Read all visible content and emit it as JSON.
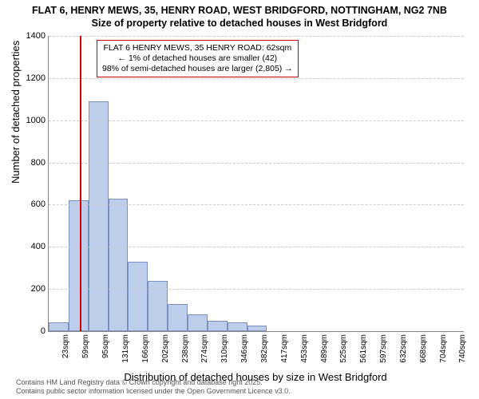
{
  "title": {
    "line1": "FLAT 6, HENRY MEWS, 35, HENRY ROAD, WEST BRIDGFORD, NOTTINGHAM, NG2 7NB",
    "line2": "Size of property relative to detached houses in West Bridgford"
  },
  "chart": {
    "type": "histogram",
    "ylabel": "Number of detached properties",
    "xlabel": "Distribution of detached houses by size in West Bridgford",
    "ylim": [
      0,
      1400
    ],
    "ytick_step": 200,
    "yticks": [
      0,
      200,
      400,
      600,
      800,
      1000,
      1200,
      1400
    ],
    "bar_fill": "#becde9",
    "bar_border": "#7a91bf",
    "grid_color": "#cccccc",
    "background_color": "#ffffff",
    "axis_color": "#888888",
    "marker_color": "#d00000",
    "marker_x_value": 62,
    "bars": [
      {
        "x0": 5,
        "x1": 41,
        "value": 42,
        "xtick": "23sqm"
      },
      {
        "x0": 41,
        "x1": 77,
        "value": 620,
        "xtick": "59sqm"
      },
      {
        "x0": 77,
        "x1": 113,
        "value": 1090,
        "xtick": "95sqm"
      },
      {
        "x0": 113,
        "x1": 149,
        "value": 630,
        "xtick": "131sqm"
      },
      {
        "x0": 149,
        "x1": 185,
        "value": 330,
        "xtick": "166sqm"
      },
      {
        "x0": 185,
        "x1": 221,
        "value": 240,
        "xtick": "202sqm"
      },
      {
        "x0": 221,
        "x1": 257,
        "value": 130,
        "xtick": "238sqm"
      },
      {
        "x0": 257,
        "x1": 293,
        "value": 80,
        "xtick": "274sqm"
      },
      {
        "x0": 293,
        "x1": 329,
        "value": 50,
        "xtick": "310sqm"
      },
      {
        "x0": 329,
        "x1": 365,
        "value": 40,
        "xtick": "346sqm"
      },
      {
        "x0": 365,
        "x1": 401,
        "value": 25,
        "xtick": "382sqm"
      },
      {
        "x0": 401,
        "x1": 437,
        "value": 0,
        "xtick": "417sqm"
      },
      {
        "x0": 437,
        "x1": 473,
        "value": 0,
        "xtick": "453sqm"
      },
      {
        "x0": 473,
        "x1": 509,
        "value": 0,
        "xtick": "489sqm"
      },
      {
        "x0": 509,
        "x1": 545,
        "value": 0,
        "xtick": "525sqm"
      },
      {
        "x0": 545,
        "x1": 581,
        "value": 0,
        "xtick": "561sqm"
      },
      {
        "x0": 581,
        "x1": 617,
        "value": 0,
        "xtick": "597sqm"
      },
      {
        "x0": 617,
        "x1": 653,
        "value": 0,
        "xtick": "632sqm"
      },
      {
        "x0": 653,
        "x1": 689,
        "value": 0,
        "xtick": "668sqm"
      },
      {
        "x0": 689,
        "x1": 725,
        "value": 0,
        "xtick": "704sqm"
      },
      {
        "x0": 725,
        "x1": 758,
        "value": 0,
        "xtick": "740sqm"
      }
    ],
    "x_domain": [
      5,
      758
    ]
  },
  "annotation": {
    "line1": "FLAT 6 HENRY MEWS, 35 HENRY ROAD: 62sqm",
    "line2": "← 1% of detached houses are smaller (42)",
    "line3": "98% of semi-detached houses are larger (2,805) →",
    "border_color": "#d00000",
    "background_color": "#ffffff",
    "fontsize": 10.5
  },
  "footer": {
    "line1": "Contains HM Land Registry data © Crown copyright and database right 2025.",
    "line2": "Contains public sector information licensed under the Open Government Licence v3.0."
  }
}
